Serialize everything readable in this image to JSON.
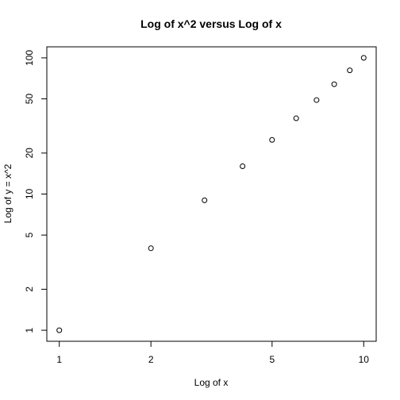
{
  "chart_data": {
    "type": "scatter",
    "title": "Log of x^2 versus Log of x",
    "xlabel": "Log of x",
    "ylabel": "Log of y = x^2",
    "x_scale": "log",
    "y_scale": "log",
    "xlim": [
      0.91,
      10.99
    ],
    "ylim": [
      0.83,
      120.5
    ],
    "xticks": [
      {
        "value": 1,
        "label": "1"
      },
      {
        "value": 2,
        "label": "2"
      },
      {
        "value": 5,
        "label": "5"
      },
      {
        "value": 10,
        "label": "10"
      }
    ],
    "yticks": [
      {
        "value": 1,
        "label": "1"
      },
      {
        "value": 2,
        "label": "2"
      },
      {
        "value": 5,
        "label": "5"
      },
      {
        "value": 10,
        "label": "10"
      },
      {
        "value": 20,
        "label": "20"
      },
      {
        "value": 50,
        "label": "50"
      },
      {
        "value": 100,
        "label": "100"
      }
    ],
    "grid": false,
    "marker": "open-circle",
    "x": [
      1,
      2,
      3,
      4,
      5,
      6,
      7,
      8,
      9,
      10
    ],
    "y": [
      1,
      4,
      9,
      16,
      25,
      36,
      49,
      64,
      81,
      100
    ]
  }
}
